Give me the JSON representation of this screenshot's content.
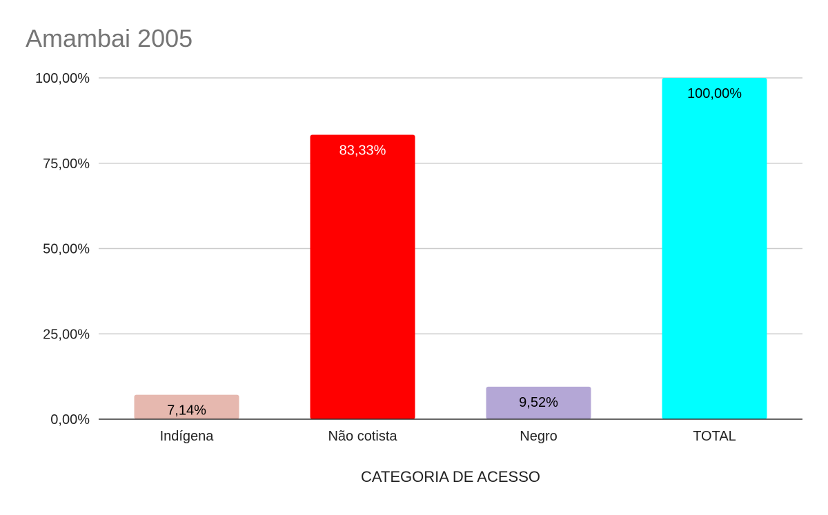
{
  "chart_data": {
    "type": "bar",
    "title": "Amambai 2005",
    "xlabel": "CATEGORIA DE ACESSO",
    "ylabel": "",
    "ylim": [
      0,
      100
    ],
    "yticks": [
      0,
      25,
      50,
      75,
      100
    ],
    "ytick_labels": [
      "0,00%",
      "25,00%",
      "50,00%",
      "75,00%",
      "100,00%"
    ],
    "grid": true,
    "legend": "none",
    "categories": [
      "Indígena",
      "Não cotista",
      "Negro",
      "TOTAL"
    ],
    "values": [
      7.14,
      83.33,
      9.52,
      100.0
    ],
    "value_labels": [
      "7,14%",
      "83,33%",
      "9,52%",
      "100,00%"
    ],
    "colors": [
      "#e6b8af",
      "#ff0000",
      "#b4a7d6",
      "#00ffff"
    ],
    "label_colors": [
      "#000000",
      "#ffffff",
      "#000000",
      "#000000"
    ]
  }
}
